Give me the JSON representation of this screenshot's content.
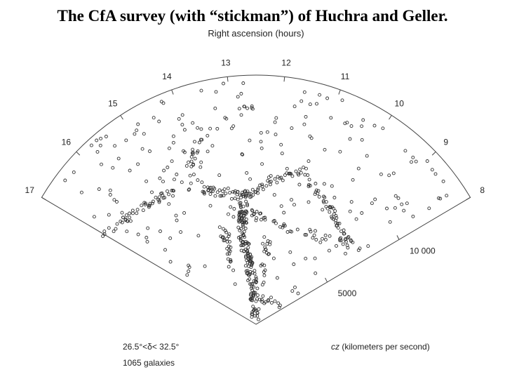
{
  "slide": {
    "title": "The CfA survey (with “stickman”) of Huchra and Geller."
  },
  "figure": {
    "axis_label": "Right ascension (hours)",
    "hour_labels": [
      "17",
      "16",
      "15",
      "14",
      "13",
      "12",
      "11",
      "10",
      "9",
      "8"
    ],
    "distance_labels": [
      "5000",
      "10 000"
    ],
    "declination": "26.5°<δ< 32.5°",
    "count": "1065 galaxies",
    "cz_symbol": "cz",
    "cz_unit": "(kilometers per second)"
  }
}
